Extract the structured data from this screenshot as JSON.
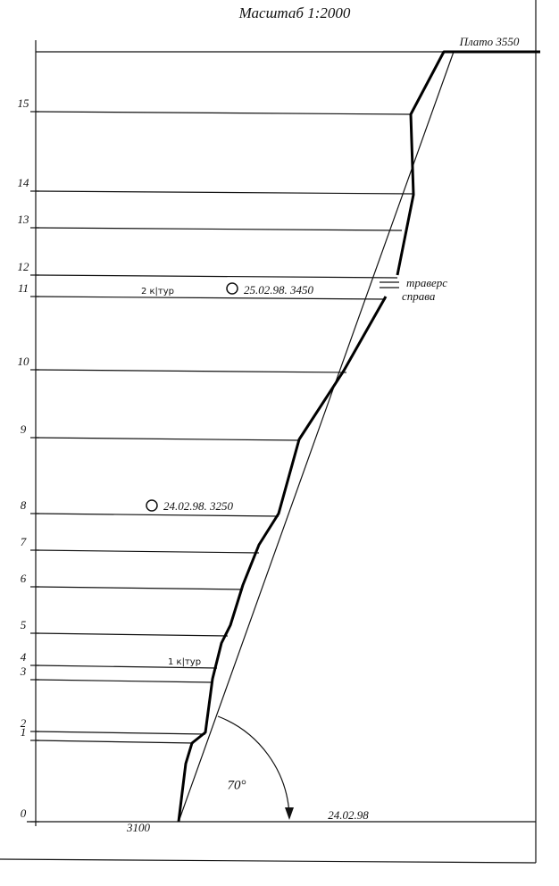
{
  "title": "Масштаб 1:2000",
  "plateau": "Плато 3550",
  "sections": [
    "0",
    "1",
    "2",
    "3",
    "4",
    "5",
    "6",
    "7",
    "8",
    "9",
    "10",
    "11",
    "12",
    "13",
    "14",
    "15"
  ],
  "annotations": {
    "camp2": "2 к|тур",
    "mark2": "25.02.98. 3450",
    "traverse": [
      "траверс",
      "справа"
    ],
    "mark1": "24.02.98. 3250",
    "camp1": "1 к|тур",
    "angle": "70°",
    "start_date": "24.02.98",
    "start_alt": "3100"
  }
}
